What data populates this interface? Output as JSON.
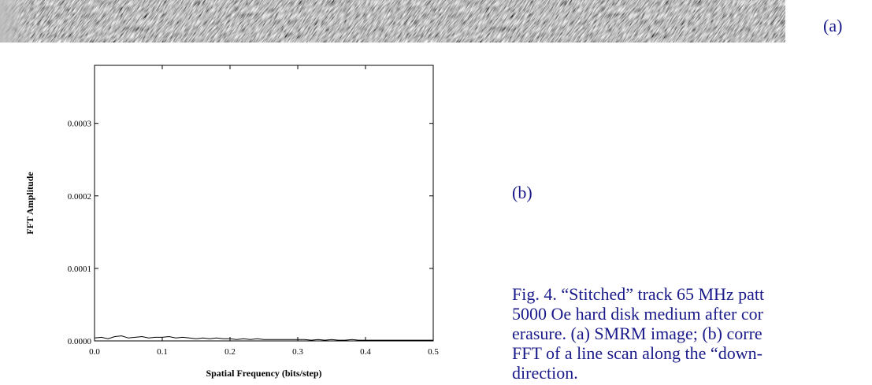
{
  "figure": {
    "label_a": "(a)",
    "label_b": "(b)",
    "caption_lines": [
      "Fig. 4. “Stitched” track 65 MHz patt",
      "5000 Oe hard disk medium after cor",
      "erasure. (a) SMRM image; (b) corre",
      "FFT of a line scan along the “down-",
      "direction."
    ]
  },
  "chart_data": {
    "type": "line",
    "xlabel": "Spatial Frequency (bits/step)",
    "ylabel": "FFT Amplitude",
    "xlim": [
      0.0,
      0.5
    ],
    "ylim": [
      0.0,
      0.00038
    ],
    "x_ticks": [
      "0.0",
      "0.1",
      "0.2",
      "0.3",
      "0.4",
      "0.5"
    ],
    "y_ticks": [
      "0.0000",
      "0.0001",
      "0.0002",
      "0.0003"
    ],
    "grid": false,
    "series": [
      {
        "x": [
          0.0,
          0.01,
          0.02,
          0.03,
          0.04,
          0.05,
          0.06,
          0.07,
          0.08,
          0.09,
          0.1,
          0.11,
          0.12,
          0.13,
          0.14,
          0.15,
          0.16,
          0.17,
          0.18,
          0.19,
          0.2,
          0.21,
          0.22,
          0.23,
          0.24,
          0.25,
          0.26,
          0.27,
          0.28,
          0.29,
          0.3,
          0.31,
          0.32,
          0.33,
          0.34,
          0.35,
          0.36,
          0.37,
          0.38,
          0.39,
          0.4,
          0.41,
          0.42,
          0.43,
          0.44,
          0.45,
          0.46,
          0.47,
          0.48,
          0.49,
          0.5
        ],
        "values": [
          4e-06,
          5e-06,
          3e-06,
          6e-06,
          7e-06,
          4e-06,
          5e-06,
          6e-06,
          4e-06,
          5e-06,
          5e-06,
          6e-06,
          4e-06,
          5e-06,
          4e-06,
          3e-06,
          4e-06,
          3e-06,
          4e-06,
          3e-06,
          3e-06,
          2e-06,
          3e-06,
          2e-06,
          3e-06,
          2e-06,
          2e-06,
          2e-06,
          2e-06,
          2e-06,
          2e-06,
          2e-06,
          1e-06,
          2e-06,
          1e-06,
          2e-06,
          1e-06,
          1e-06,
          2e-06,
          1e-06,
          1e-06,
          1e-06,
          1e-06,
          1e-06,
          1e-06,
          1e-06,
          1e-06,
          1e-06,
          1e-06,
          1e-06,
          1e-06
        ]
      }
    ]
  }
}
